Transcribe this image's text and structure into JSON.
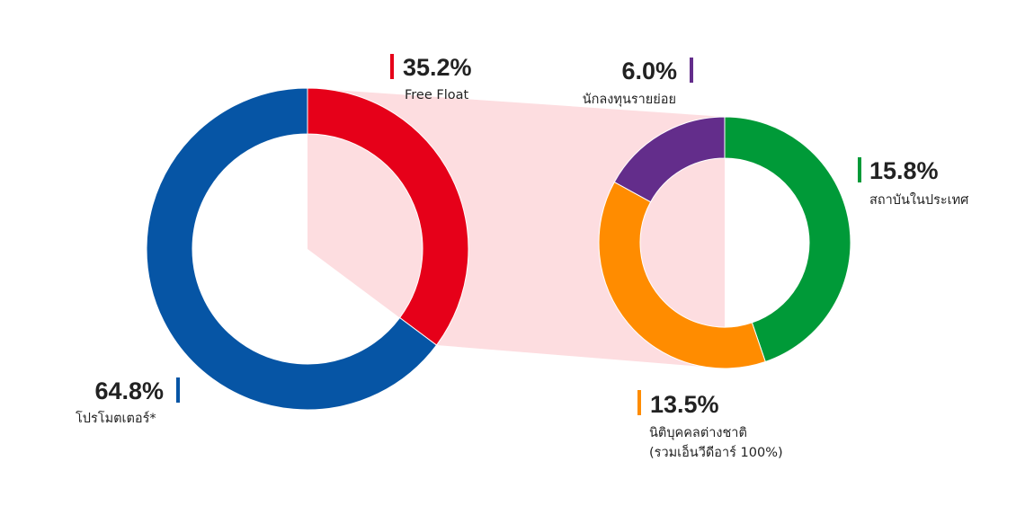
{
  "chart_data": {
    "type": "pie",
    "donuts": [
      {
        "name": "",
        "slices": [
          {
            "label": "Free Float",
            "value": 35.2,
            "value_text": "35.2%",
            "color": "#E60019"
          },
          {
            "label": "โปรโมตเตอร์*",
            "value": 64.8,
            "value_text": "64.8%",
            "color": "#0655A5"
          }
        ]
      },
      {
        "name": "",
        "slices": [
          {
            "label": "สถาบันในประเทศ",
            "value": 15.8,
            "value_text": "15.8%",
            "color": "#009A38"
          },
          {
            "label": "นิติบุคคลต่างชาติ\n(รวมเอ็นวีดีอาร์ 100%)",
            "lines": [
              "นิติบุคคลต่างชาติ",
              "(รวมเอ็นวีดีอาร์ 100%)"
            ],
            "value": 13.5,
            "value_text": "13.5%",
            "color": "#FF8C00"
          },
          {
            "label": "นักลงทุนรายย่อย",
            "value": 6.0,
            "value_text": "6.0%",
            "color": "#632D8B"
          }
        ]
      }
    ],
    "connector_color": "#FDDDE0",
    "legend": "inline labels"
  }
}
